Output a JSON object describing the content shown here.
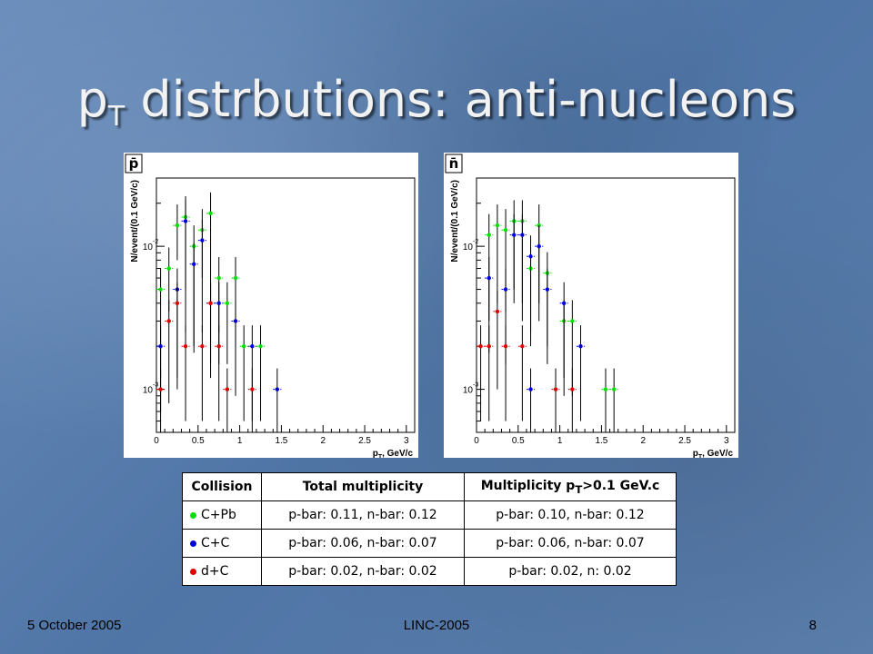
{
  "slide": {
    "title_main": "p",
    "title_sub": "T",
    "title_rest": " distrbutions: anti-nucleons",
    "footer_left": "5 October 2005",
    "footer_center": "LINC-2005",
    "footer_right": "8"
  },
  "colors": {
    "green": "#00e000",
    "blue": "#0000dd",
    "red": "#e00000",
    "errbar": "#000000"
  },
  "chart_data": [
    {
      "type": "scatter",
      "panel_label": "p̄",
      "ylabel": "N/event/(0.1 GeV/c)",
      "xlabel_main": "p",
      "xlabel_sub": "T",
      "xlabel_rest": ", GeV/c",
      "x_ticks": [
        "0",
        "0.5",
        "1",
        "1.5",
        "2",
        "2.5",
        "3"
      ],
      "y_tick_labels": [
        {
          "base": "10",
          "exp": "-3",
          "value": 0.001
        },
        {
          "base": "10",
          "exp": "-2",
          "value": 0.01
        }
      ],
      "xlim": [
        0,
        3.1
      ],
      "ylim_log": [
        0.0005,
        0.03
      ],
      "yscale": "log",
      "series": [
        {
          "name": "C+Pb",
          "color": "green",
          "points": [
            {
              "x": 0.05,
              "y": 0.005,
              "lo": 0.0012
            },
            {
              "x": 0.15,
              "y": 0.007,
              "lo": 0.0035
            },
            {
              "x": 0.25,
              "y": 0.014,
              "lo": 0.008
            },
            {
              "x": 0.35,
              "y": 0.016,
              "lo": 0.0025
            },
            {
              "x": 0.45,
              "y": 0.01,
              "lo": 0.0018
            },
            {
              "x": 0.55,
              "y": 0.013,
              "lo": 0.006
            },
            {
              "x": 0.65,
              "y": 0.017,
              "lo": 0.004
            },
            {
              "x": 0.75,
              "y": 0.006,
              "lo": 0.0025
            },
            {
              "x": 0.85,
              "y": 0.004,
              "lo": 0.0015
            },
            {
              "x": 0.95,
              "y": 0.006,
              "lo": 0.002
            },
            {
              "x": 1.05,
              "y": 0.002,
              "lo": 0.0006
            },
            {
              "x": 1.25,
              "y": 0.002,
              "lo": 0.0006
            }
          ]
        },
        {
          "name": "C+C",
          "color": "blue",
          "points": [
            {
              "x": 0.05,
              "y": 0.002,
              "lo": 0.0007
            },
            {
              "x": 0.25,
              "y": 0.005,
              "lo": 0.0012
            },
            {
              "x": 0.35,
              "y": 0.015,
              "lo": 0.005
            },
            {
              "x": 0.45,
              "y": 0.0075,
              "lo": 0.002
            },
            {
              "x": 0.55,
              "y": 0.011,
              "lo": 0.0025
            },
            {
              "x": 0.65,
              "y": 0.004,
              "lo": 0.0015
            },
            {
              "x": 0.75,
              "y": 0.004,
              "lo": 0.0015
            },
            {
              "x": 0.95,
              "y": 0.003,
              "lo": 0.0009
            },
            {
              "x": 1.15,
              "y": 0.002,
              "lo": 0.0006
            },
            {
              "x": 1.45,
              "y": 0.001,
              "lo": 0.0003
            }
          ]
        },
        {
          "name": "d+C",
          "color": "red",
          "points": [
            {
              "x": 0.05,
              "y": 0.001,
              "lo": 0.0003
            },
            {
              "x": 0.15,
              "y": 0.003,
              "lo": 0.0008
            },
            {
              "x": 0.25,
              "y": 0.004,
              "lo": 0.001
            },
            {
              "x": 0.35,
              "y": 0.002,
              "lo": 0.0006
            },
            {
              "x": 0.55,
              "y": 0.002,
              "lo": 0.0006
            },
            {
              "x": 0.65,
              "y": 0.004,
              "lo": 0.0012
            },
            {
              "x": 0.75,
              "y": 0.002,
              "lo": 0.0006
            },
            {
              "x": 0.85,
              "y": 0.001,
              "lo": 0.0003
            },
            {
              "x": 1.15,
              "y": 0.001,
              "lo": 0.0003
            }
          ]
        }
      ]
    },
    {
      "type": "scatter",
      "panel_label": "n̄",
      "ylabel": "N/event/(0.1 GeV/c)",
      "xlabel_main": "p",
      "xlabel_sub": "T",
      "xlabel_rest": ", GeV/c",
      "x_ticks": [
        "0",
        "0.5",
        "1",
        "1.5",
        "2",
        "2.5",
        "3"
      ],
      "y_tick_labels": [
        {
          "base": "10",
          "exp": "-3",
          "value": 0.001
        },
        {
          "base": "10",
          "exp": "-2",
          "value": 0.01
        }
      ],
      "xlim": [
        0,
        3.1
      ],
      "ylim_log": [
        0.0005,
        0.03
      ],
      "yscale": "log",
      "series": [
        {
          "name": "C+Pb",
          "color": "green",
          "points": [
            {
              "x": 0.15,
              "y": 0.012,
              "lo": 0.003
            },
            {
              "x": 0.25,
              "y": 0.014,
              "lo": 0.004
            },
            {
              "x": 0.35,
              "y": 0.013,
              "lo": 0.0035
            },
            {
              "x": 0.45,
              "y": 0.015,
              "lo": 0.005
            },
            {
              "x": 0.55,
              "y": 0.015,
              "lo": 0.004
            },
            {
              "x": 0.65,
              "y": 0.007,
              "lo": 0.002
            },
            {
              "x": 0.75,
              "y": 0.014,
              "lo": 0.004
            },
            {
              "x": 0.85,
              "y": 0.0065,
              "lo": 0.002
            },
            {
              "x": 1.05,
              "y": 0.003,
              "lo": 0.0009
            },
            {
              "x": 1.15,
              "y": 0.003,
              "lo": 0.0009
            },
            {
              "x": 1.55,
              "y": 0.001,
              "lo": 0.0003
            },
            {
              "x": 1.65,
              "y": 0.001,
              "lo": 0.0003
            }
          ]
        },
        {
          "name": "C+C",
          "color": "blue",
          "points": [
            {
              "x": 0.15,
              "y": 0.006,
              "lo": 0.0018
            },
            {
              "x": 0.35,
              "y": 0.005,
              "lo": 0.0015
            },
            {
              "x": 0.45,
              "y": 0.012,
              "lo": 0.004
            },
            {
              "x": 0.55,
              "y": 0.012,
              "lo": 0.003
            },
            {
              "x": 0.65,
              "y": 0.0085,
              "lo": 0.0025
            },
            {
              "x": 0.75,
              "y": 0.01,
              "lo": 0.003
            },
            {
              "x": 0.85,
              "y": 0.005,
              "lo": 0.0015
            },
            {
              "x": 1.05,
              "y": 0.004,
              "lo": 0.0012
            },
            {
              "x": 1.25,
              "y": 0.002,
              "lo": 0.0006
            },
            {
              "x": 0.65,
              "y": 0.001,
              "lo": 0.0003
            }
          ]
        },
        {
          "name": "d+C",
          "color": "red",
          "points": [
            {
              "x": 0.05,
              "y": 0.002,
              "lo": 0.0006
            },
            {
              "x": 0.15,
              "y": 0.002,
              "lo": 0.0006
            },
            {
              "x": 0.25,
              "y": 0.0035,
              "lo": 0.001
            },
            {
              "x": 0.35,
              "y": 0.002,
              "lo": 0.0006
            },
            {
              "x": 0.55,
              "y": 0.002,
              "lo": 0.0006
            },
            {
              "x": 0.95,
              "y": 0.001,
              "lo": 0.0003
            },
            {
              "x": 1.15,
              "y": 0.001,
              "lo": 0.0003
            }
          ]
        }
      ]
    }
  ],
  "table": {
    "headers": {
      "collision": "Collision",
      "total": "Total multiplicity",
      "mult_pre": "Multiplicity p",
      "mult_sub": "T",
      "mult_post": ">0.1 GeV.c"
    },
    "rows": [
      {
        "collision": "C+Pb",
        "dot": "green",
        "total": "p-bar: 0.11, n-bar: 0.12",
        "cut": "p-bar: 0.10, n-bar: 0.12"
      },
      {
        "collision": "C+C",
        "dot": "blue",
        "total": "p-bar: 0.06, n-bar: 0.07",
        "cut": "p-bar: 0.06, n-bar: 0.07"
      },
      {
        "collision": "d+C",
        "dot": "red",
        "total": "p-bar: 0.02, n-bar: 0.02",
        "cut": "p-bar: 0.02, n: 0.02"
      }
    ]
  }
}
